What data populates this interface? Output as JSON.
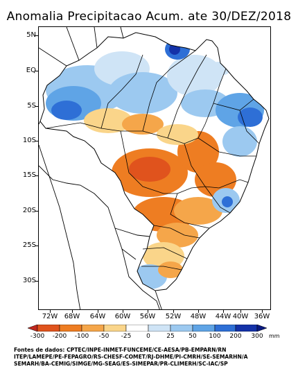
{
  "title": "Anomalia Precipitacao Acum. ate 30/DEZ/2018",
  "lat_labels": [
    "5N",
    "EQ",
    "5S",
    "10S",
    "15S",
    "20S",
    "25S",
    "30S"
  ],
  "lon_labels": [
    "72W",
    "68W",
    "64W",
    "60W",
    "56W",
    "52W",
    "48W",
    "44W",
    "40W",
    "36W"
  ],
  "colorbar": {
    "labels": [
      "-300",
      "-200",
      "-100",
      "-50",
      "-25",
      "0",
      "25",
      "50",
      "100",
      "200",
      "300"
    ],
    "unit": "mm",
    "colors": [
      "#c0281e",
      "#e0531d",
      "#ee7d22",
      "#f5a64a",
      "#fad58a",
      "#ffffff",
      "#cfe4f6",
      "#9cc9f0",
      "#5fa4e6",
      "#2e6fd6",
      "#1432a8",
      "#0a1a80"
    ]
  },
  "sources": [
    "Fontes de dados: CPTEC/INPE-INMET-FUNCEME/CE-AESA/PB-EMPARN/RN",
    "ITEP/LAMEPE/PE-FEPAGRO/RS-CHESF-COMET/RJ-DHME/PI-CMRH/SE-SEMARHN/A",
    "SEMARH/BA-CEMIG/SIMGE/MG-SEAG/ES-SIMEPAR/PR-CLIMERH/SC-IAC/SP"
  ]
}
